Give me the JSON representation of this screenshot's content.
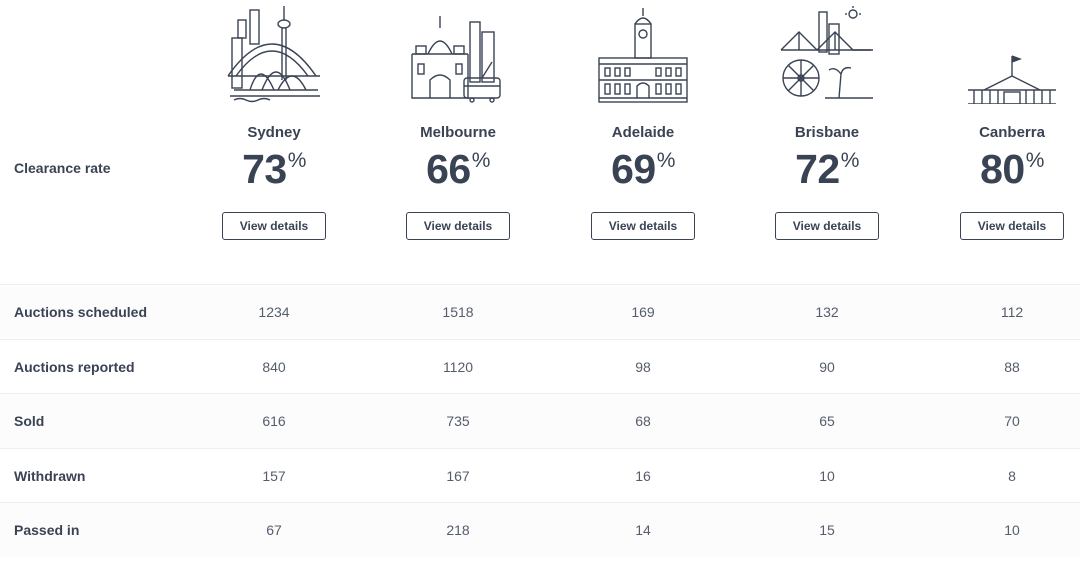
{
  "clearance_label": "Clearance rate",
  "cities": [
    {
      "name": "Sydney",
      "rate": "73",
      "rate_suffix": "%",
      "button": "View details",
      "icon": "sydney-skyline-icon"
    },
    {
      "name": "Melbourne",
      "rate": "66",
      "rate_suffix": "%",
      "button": "View details",
      "icon": "melbourne-skyline-icon"
    },
    {
      "name": "Adelaide",
      "rate": "69",
      "rate_suffix": "%",
      "button": "View details",
      "icon": "adelaide-skyline-icon"
    },
    {
      "name": "Brisbane",
      "rate": "72",
      "rate_suffix": "%",
      "button": "View details",
      "icon": "brisbane-skyline-icon"
    },
    {
      "name": "Canberra",
      "rate": "80",
      "rate_suffix": "%",
      "button": "View details",
      "icon": "canberra-skyline-icon"
    }
  ],
  "rows": [
    {
      "label": "Auctions scheduled",
      "values": [
        "1234",
        "1518",
        "169",
        "132",
        "112"
      ]
    },
    {
      "label": "Auctions reported",
      "values": [
        "840",
        "1120",
        "98",
        "90",
        "88"
      ]
    },
    {
      "label": "Sold",
      "values": [
        "616",
        "735",
        "68",
        "65",
        "70"
      ]
    },
    {
      "label": "Withdrawn",
      "values": [
        "157",
        "167",
        "16",
        "10",
        "8"
      ]
    },
    {
      "label": "Passed in",
      "values": [
        "67",
        "218",
        "14",
        "15",
        "10"
      ]
    }
  ],
  "colors": {
    "text": "#3a4354",
    "border": "#3a4354",
    "row_divider": "#eceff3"
  }
}
